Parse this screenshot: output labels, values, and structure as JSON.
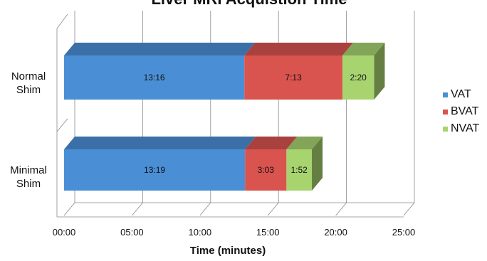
{
  "chart_data": {
    "type": "bar",
    "orientation": "horizontal",
    "stacked": true,
    "three_d": true,
    "title": "Liver MRI Acquistion Time",
    "xlabel": "Time (minutes)",
    "ylabel": "",
    "categories": [
      "Normal Shim",
      "Minimal Shim"
    ],
    "x_ticks": [
      "00:00",
      "05:00",
      "10:00",
      "15:00",
      "20:00",
      "25:00"
    ],
    "xlim": [
      0,
      25
    ],
    "x_unit": "minutes",
    "grid": true,
    "legend_position": "right",
    "series": [
      {
        "name": "VAT",
        "color": "#4a8fd6",
        "values": [
          13.27,
          13.32
        ],
        "labels": [
          "13:16",
          "13:19"
        ]
      },
      {
        "name": "BVAT",
        "color": "#d9534f",
        "values": [
          7.22,
          3.05
        ],
        "labels": [
          "7:13",
          "3:03"
        ]
      },
      {
        "name": "NVAT",
        "color": "#a8d46f",
        "values": [
          2.33,
          1.87
        ],
        "labels": [
          "2:20",
          "1:52"
        ]
      }
    ]
  }
}
